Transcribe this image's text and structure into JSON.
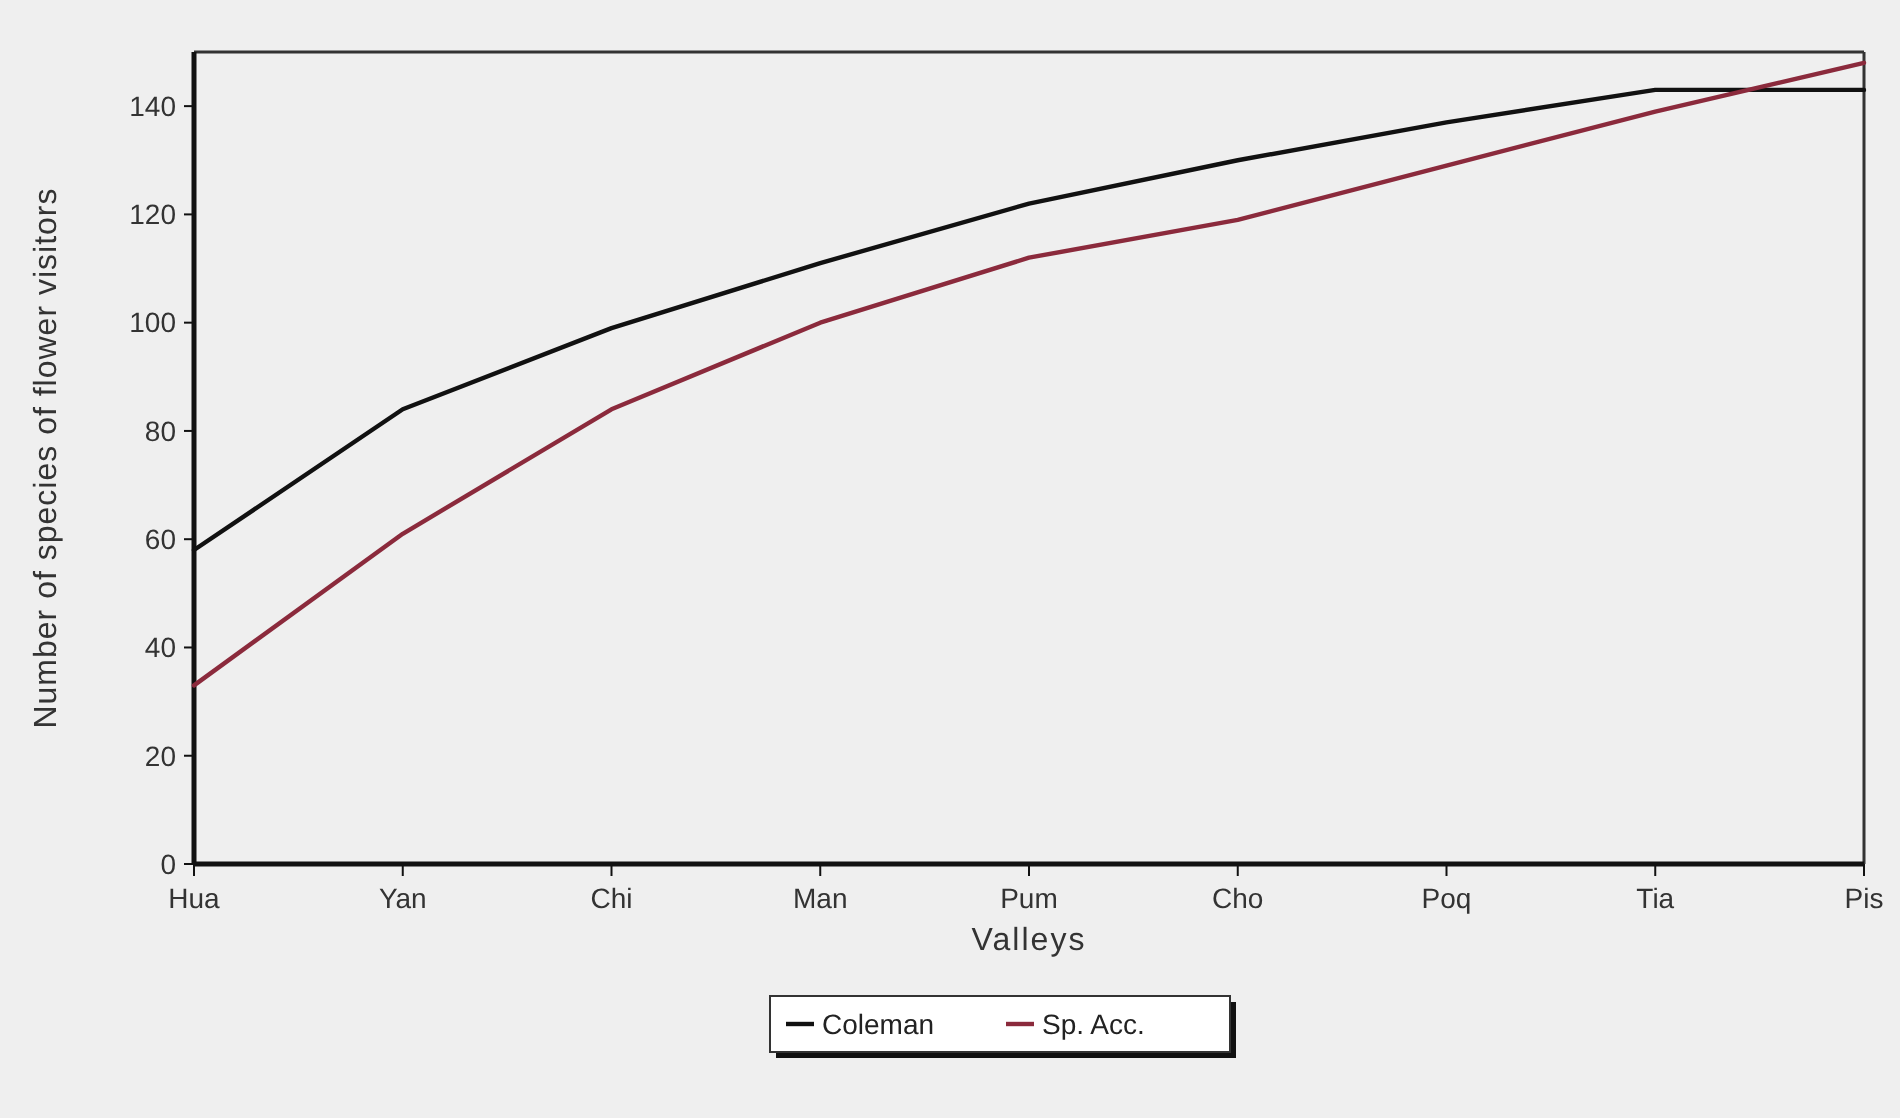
{
  "chart_data": {
    "type": "line",
    "xlabel": "Valleys",
    "ylabel": "Number of species of flower visitors",
    "categories": [
      "Hua",
      "Yan",
      "Chi",
      "Man",
      "Pum",
      "Cho",
      "Poq",
      "Tia",
      "Pis"
    ],
    "series": [
      {
        "name": "Coleman",
        "color": "#111111",
        "values": [
          58,
          84,
          99,
          111,
          122,
          130,
          137,
          143,
          143
        ]
      },
      {
        "name": "Sp. Acc.",
        "color": "#8b2a3c",
        "values": [
          33,
          61,
          84,
          100,
          112,
          119,
          129,
          139,
          148
        ]
      }
    ],
    "ylim": [
      0,
      150
    ],
    "yticks": [
      0,
      20,
      40,
      60,
      80,
      100,
      120,
      140
    ],
    "grid": false,
    "legend": "bottom",
    "marker": "none",
    "line_style": "solid"
  }
}
